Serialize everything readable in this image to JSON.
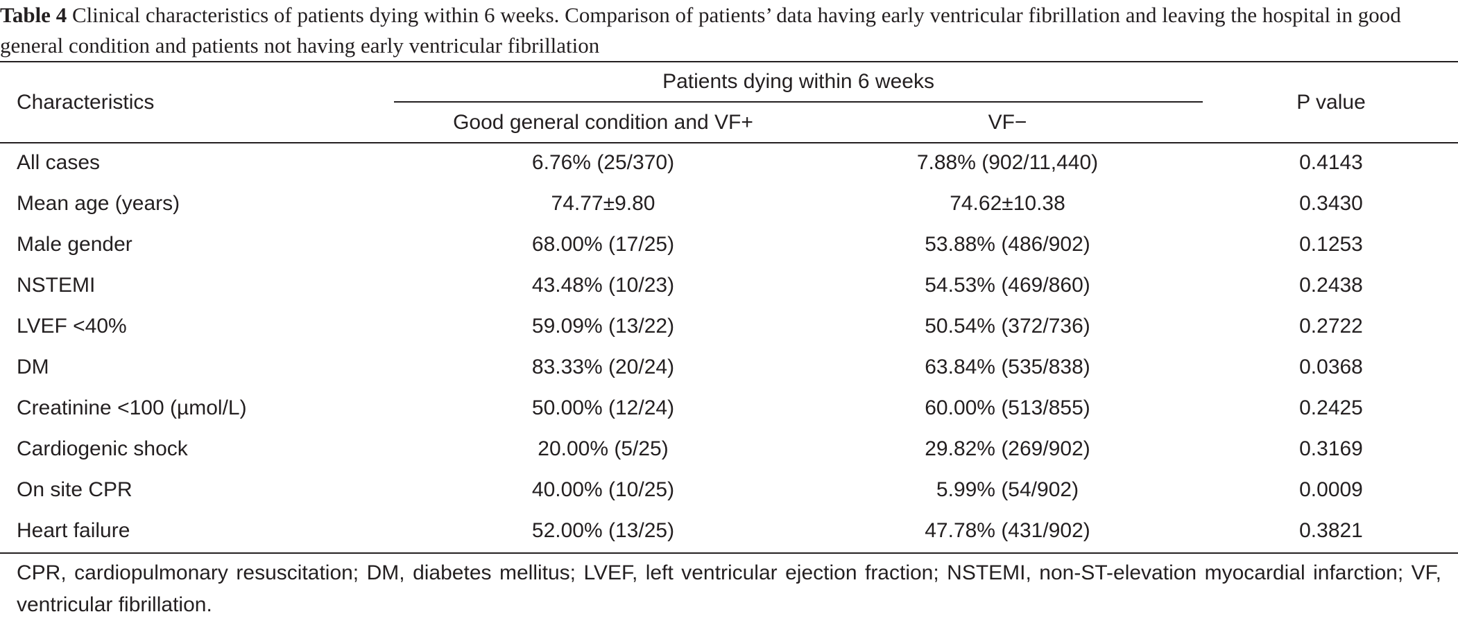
{
  "caption": {
    "label": "Table 4",
    "text": "Clinical characteristics of patients dying within 6 weeks. Comparison of patients’ data having early ventricular fibrillation and leaving the hospital in good general condition and patients not having early ventricular fibrillation"
  },
  "table": {
    "header": {
      "characteristics": "Characteristics",
      "group": "Patients dying within 6 weeks",
      "col1": "Good general condition and VF+",
      "col2": "VF−",
      "pvalue": "P value"
    },
    "rows": [
      {
        "label": "All cases",
        "vf_plus": "6.76% (25/370)",
        "vf_minus": "7.88% (902/11,440)",
        "p": "0.4143"
      },
      {
        "label": "Mean age (years)",
        "vf_plus": "74.77±9.80",
        "vf_minus": "74.62±10.38",
        "p": "0.3430"
      },
      {
        "label": "Male gender",
        "vf_plus": "68.00% (17/25)",
        "vf_minus": "53.88% (486/902)",
        "p": "0.1253"
      },
      {
        "label": "NSTEMI",
        "vf_plus": "43.48% (10/23)",
        "vf_minus": "54.53% (469/860)",
        "p": "0.2438"
      },
      {
        "label": "LVEF <40%",
        "vf_plus": "59.09% (13/22)",
        "vf_minus": "50.54% (372/736)",
        "p": "0.2722"
      },
      {
        "label": "DM",
        "vf_plus": "83.33% (20/24)",
        "vf_minus": "63.84% (535/838)",
        "p": "0.0368"
      },
      {
        "label": "Creatinine <100 (µmol/L)",
        "vf_plus": "50.00% (12/24)",
        "vf_minus": "60.00% (513/855)",
        "p": "0.2425"
      },
      {
        "label": "Cardiogenic shock",
        "vf_plus": "20.00% (5/25)",
        "vf_minus": "29.82% (269/902)",
        "p": "0.3169"
      },
      {
        "label": "On site CPR",
        "vf_plus": "40.00% (10/25)",
        "vf_minus": "5.99% (54/902)",
        "p": "0.0009"
      },
      {
        "label": "Heart failure",
        "vf_plus": "52.00% (13/25)",
        "vf_minus": "47.78% (431/902)",
        "p": "0.3821"
      }
    ],
    "footnote": "CPR, cardiopulmonary resuscitation; DM, diabetes mellitus; LVEF, left ventricular ejection fraction; NSTEMI, non-ST-elevation myocardial infarction; VF, ventricular fibrillation."
  }
}
